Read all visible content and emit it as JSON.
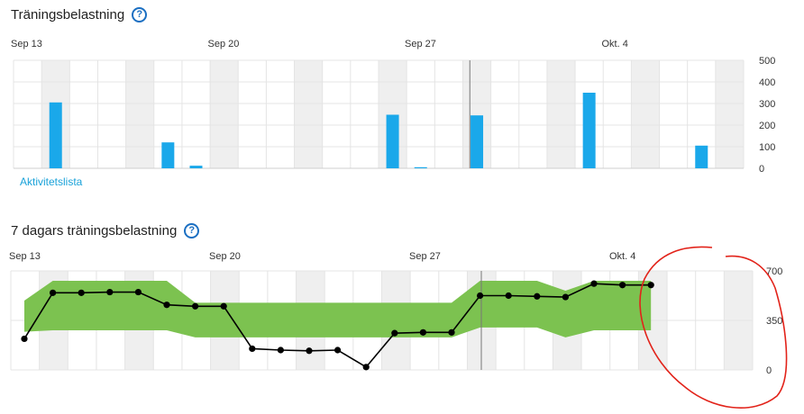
{
  "chart_data": [
    {
      "type": "bar",
      "title": "Träningsbelastning",
      "x_labels": [
        "Sep 13",
        "Sep 20",
        "Sep 27",
        "Okt. 4"
      ],
      "y_ticks": [
        "500",
        "400",
        "300",
        "200",
        "100",
        "0"
      ],
      "ylim": [
        0,
        500
      ],
      "days": 26,
      "bars": [
        {
          "day": 1,
          "value": 305
        },
        {
          "day": 5,
          "value": 120
        },
        {
          "day": 6,
          "value": 12
        },
        {
          "day": 13,
          "value": 248
        },
        {
          "day": 14,
          "value": 5
        },
        {
          "day": 16,
          "value": 245
        },
        {
          "day": 20,
          "value": 350
        },
        {
          "day": 24,
          "value": 105
        }
      ],
      "color": "#1aa8ea"
    },
    {
      "type": "line",
      "title": "7 dagars träningsbelastning",
      "x_labels": [
        "Sep 13",
        "Sep 20",
        "Sep 27",
        "Okt. 4"
      ],
      "y_ticks": [
        "700",
        "350",
        "0"
      ],
      "ylim": [
        0,
        700
      ],
      "days": 26,
      "values": [
        220,
        545,
        545,
        550,
        550,
        460,
        450,
        450,
        150,
        140,
        135,
        140,
        20,
        260,
        265,
        265,
        525,
        525,
        520,
        515,
        610,
        600,
        600
      ],
      "band_upper": [
        490,
        630,
        630,
        630,
        630,
        630,
        475,
        475,
        475,
        475,
        475,
        475,
        475,
        475,
        475,
        475,
        630,
        630,
        630,
        560,
        630,
        630,
        630
      ],
      "band_lower": [
        270,
        280,
        280,
        280,
        280,
        280,
        230,
        230,
        230,
        230,
        230,
        230,
        230,
        230,
        230,
        230,
        300,
        300,
        300,
        230,
        280,
        280,
        280
      ],
      "line_color": "#000000",
      "band_color": "#7cc250"
    }
  ],
  "link_label": "Aktivitetslista"
}
